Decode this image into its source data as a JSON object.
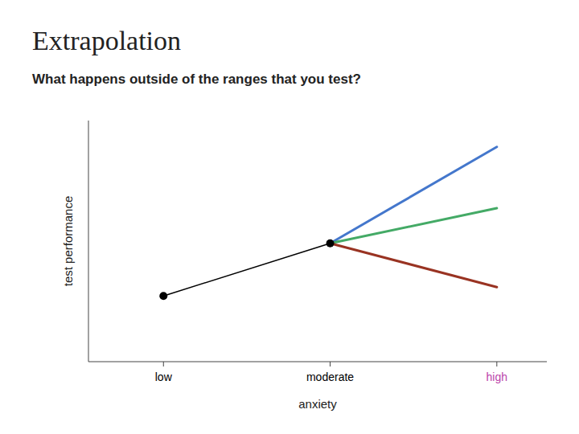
{
  "chart_data": {
    "type": "line",
    "title": "Extrapolation",
    "subtitle": "What happens outside of the ranges that you test?",
    "xlabel": "anxiety",
    "ylabel": "test performance",
    "x": [
      1,
      2,
      3
    ],
    "xlim": [
      0.55,
      3.3
    ],
    "xticks": [
      {
        "value": 1,
        "label": "low",
        "color": "black"
      },
      {
        "value": 2,
        "label": "moderate",
        "color": "black"
      },
      {
        "value": 3,
        "label": "high",
        "color": "#bb44aa"
      }
    ],
    "ylim": [
      0.3,
      5.8
    ],
    "tick_labels": "x",
    "grid": false,
    "series": [
      {
        "color": "black",
        "marker": "circle",
        "line_style": "solid",
        "values": [
          1.8,
          3.0,
          null
        ]
      },
      {
        "color": "#4477cc",
        "line_style": "solid",
        "values": [
          null,
          3.0,
          5.2
        ]
      },
      {
        "color": "#44aa66",
        "line_style": "solid",
        "values": [
          null,
          3.0,
          3.8
        ]
      },
      {
        "color": "#993322",
        "line_style": "solid",
        "values": [
          null,
          3.0,
          2.0
        ]
      }
    ]
  }
}
